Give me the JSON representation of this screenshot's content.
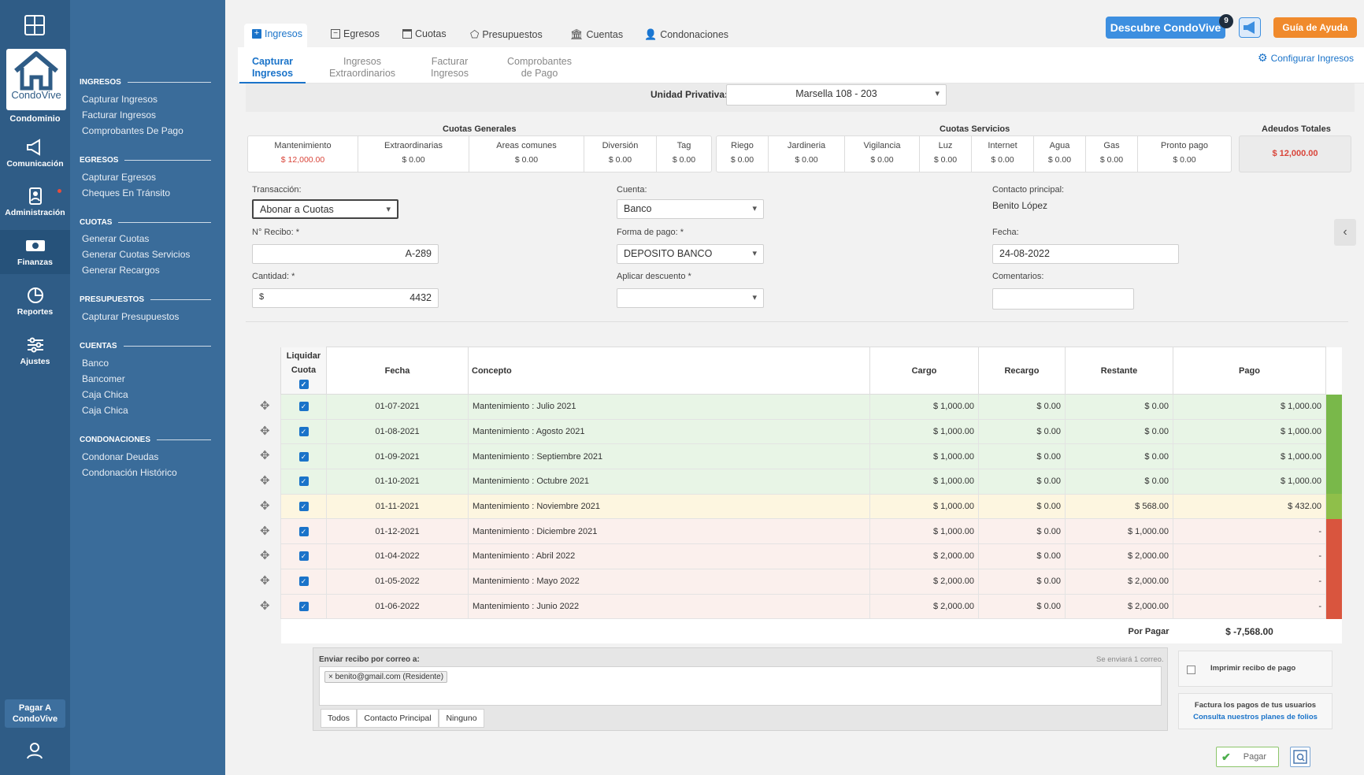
{
  "rail": {
    "logo_text": "CondoVive",
    "logo_label": "Condominio",
    "items": [
      {
        "label": "Comunicación",
        "icon": "megaphone-icon"
      },
      {
        "label": "Administración",
        "icon": "admin-icon"
      },
      {
        "label": "Finanzas",
        "icon": "money-icon"
      },
      {
        "label": "Reportes",
        "icon": "pie-chart-icon"
      },
      {
        "label": "Ajustes",
        "icon": "sliders-icon"
      }
    ],
    "pay_label": "Pagar A\nCondoVive"
  },
  "subnav": {
    "sections": [
      {
        "title": "INGRESOS",
        "links": [
          "Capturar Ingresos",
          "Facturar Ingresos",
          "Comprobantes De Pago"
        ]
      },
      {
        "title": "EGRESOS",
        "links": [
          "Capturar Egresos",
          "Cheques En Tránsito"
        ]
      },
      {
        "title": "CUOTAS",
        "links": [
          "Generar Cuotas",
          "Generar Cuotas Servicios",
          "Generar Recargos"
        ]
      },
      {
        "title": "PRESUPUESTOS",
        "links": [
          "Capturar Presupuestos"
        ]
      },
      {
        "title": "CUENTAS",
        "links": [
          "Banco",
          "Bancomer",
          "Caja Chica",
          "Caja Chica"
        ]
      },
      {
        "title": "CONDONACIONES",
        "links": [
          "Condonar Deudas",
          "Condonación Histórico"
        ]
      }
    ]
  },
  "top_tabs": [
    "Ingresos",
    "Egresos",
    "Cuotas",
    "Presupuestos",
    "Cuentas",
    "Condonaciones"
  ],
  "header": {
    "discover": "Descubre CondoVive",
    "badge": "9",
    "help": "Guía de Ayuda",
    "config": "Configurar Ingresos"
  },
  "sub_tabs": [
    "Capturar\nIngresos",
    "Ingresos\nExtraordinarios",
    "Facturar\nIngresos",
    "Comprobantes\nde Pago"
  ],
  "unidad": {
    "label": "Unidad Privativa:",
    "value": "Marsella 108 - 203"
  },
  "cuotas": {
    "generales_title": "Cuotas Generales",
    "servicios_title": "Cuotas Servicios",
    "adeudos_title": "Adeudos Totales",
    "adeudos_value": "$ 12,000.00",
    "generales": [
      {
        "n": "Mantenimiento",
        "v": "$ 12,000.00"
      },
      {
        "n": "Extraordinarias",
        "v": "$ 0.00"
      },
      {
        "n": "Areas comunes",
        "v": "$ 0.00"
      },
      {
        "n": "Diversión",
        "v": "$ 0.00"
      },
      {
        "n": "Tag",
        "v": "$ 0.00"
      }
    ],
    "servicios": [
      {
        "n": "Riego",
        "v": "$ 0.00"
      },
      {
        "n": "Jardineria",
        "v": "$ 0.00"
      },
      {
        "n": "Vigilancia",
        "v": "$ 0.00"
      },
      {
        "n": "Luz",
        "v": "$ 0.00"
      },
      {
        "n": "Internet",
        "v": "$ 0.00"
      },
      {
        "n": "Agua",
        "v": "$ 0.00"
      },
      {
        "n": "Gas",
        "v": "$ 0.00"
      },
      {
        "n": "Pronto pago",
        "v": "$ 0.00"
      }
    ]
  },
  "form": {
    "transaccion_label": "Transacción:",
    "transaccion": "Abonar a Cuotas",
    "recibo_label": "N° Recibo: *",
    "recibo": "A-289",
    "cantidad_label": "Cantidad: *",
    "currency": "$",
    "cantidad": "4432",
    "cuenta_label": "Cuenta:",
    "cuenta": "Banco",
    "forma_label": "Forma de pago: *",
    "forma": "DEPOSITO BANCO",
    "descuento_label": "Aplicar descuento *",
    "descuento": "",
    "contacto_label": "Contacto principal:",
    "contacto": "Benito López",
    "fecha_label": "Fecha:",
    "fecha": "24-08-2022",
    "comentarios_label": "Comentarios:"
  },
  "table": {
    "headers": [
      "Liquidar\nCuota",
      "Fecha",
      "Concepto",
      "Cargo",
      "Recargo",
      "Restante",
      "Pago"
    ],
    "rows": [
      {
        "fecha": "01-07-2021",
        "concepto": "Mantenimiento : Julio 2021",
        "cargo": "$ 1,000.00",
        "recargo": "$ 0.00",
        "restante": "$ 0.00",
        "pago": "$ 1,000.00",
        "status": "paid"
      },
      {
        "fecha": "01-08-2021",
        "concepto": "Mantenimiento : Agosto 2021",
        "cargo": "$ 1,000.00",
        "recargo": "$ 0.00",
        "restante": "$ 0.00",
        "pago": "$ 1,000.00",
        "status": "paid"
      },
      {
        "fecha": "01-09-2021",
        "concepto": "Mantenimiento : Septiembre 2021",
        "cargo": "$ 1,000.00",
        "recargo": "$ 0.00",
        "restante": "$ 0.00",
        "pago": "$ 1,000.00",
        "status": "paid"
      },
      {
        "fecha": "01-10-2021",
        "concepto": "Mantenimiento : Octubre 2021",
        "cargo": "$ 1,000.00",
        "recargo": "$ 0.00",
        "restante": "$ 0.00",
        "pago": "$ 1,000.00",
        "status": "paid"
      },
      {
        "fecha": "01-11-2021",
        "concepto": "Mantenimiento : Noviembre 2021",
        "cargo": "$ 1,000.00",
        "recargo": "$ 0.00",
        "restante": "$ 568.00",
        "pago": "$ 432.00",
        "status": "partial"
      },
      {
        "fecha": "01-12-2021",
        "concepto": "Mantenimiento : Diciembre 2021",
        "cargo": "$ 1,000.00",
        "recargo": "$ 0.00",
        "restante": "$ 1,000.00",
        "pago": "-",
        "status": "unpaid"
      },
      {
        "fecha": "01-04-2022",
        "concepto": "Mantenimiento : Abril 2022",
        "cargo": "$ 2,000.00",
        "recargo": "$ 0.00",
        "restante": "$ 2,000.00",
        "pago": "-",
        "status": "unpaid"
      },
      {
        "fecha": "01-05-2022",
        "concepto": "Mantenimiento : Mayo 2022",
        "cargo": "$ 2,000.00",
        "recargo": "$ 0.00",
        "restante": "$ 2,000.00",
        "pago": "-",
        "status": "unpaid"
      },
      {
        "fecha": "01-06-2022",
        "concepto": "Mantenimiento : Junio 2022",
        "cargo": "$ 2,000.00",
        "recargo": "$ 0.00",
        "restante": "$ 2,000.00",
        "pago": "-",
        "status": "unpaid"
      }
    ],
    "por_pagar_label": "Por Pagar",
    "por_pagar": "$ -7,568.00"
  },
  "email": {
    "label": "Enviar recibo por correo a:",
    "note": "Se enviará 1 correo.",
    "tag": "benito@gmail.com (Residente)",
    "buttons": [
      "Todos",
      "Contacto Principal",
      "Ninguno"
    ]
  },
  "print": {
    "label": "Imprimir recibo de pago"
  },
  "factura": {
    "title": "Factura los pagos de tus usuarios",
    "link": "Consulta nuestros planes de folios"
  },
  "actions": {
    "pay": "Pagar"
  },
  "colors": {
    "paid": "#e8f5e6",
    "partial": "#fdf6e0",
    "unpaid": "#fbf0ed",
    "bar_paid": "#79b84a",
    "bar_unpaid": "#d9553e",
    "accent": "#1a73c9",
    "orange": "#f08a2c"
  }
}
